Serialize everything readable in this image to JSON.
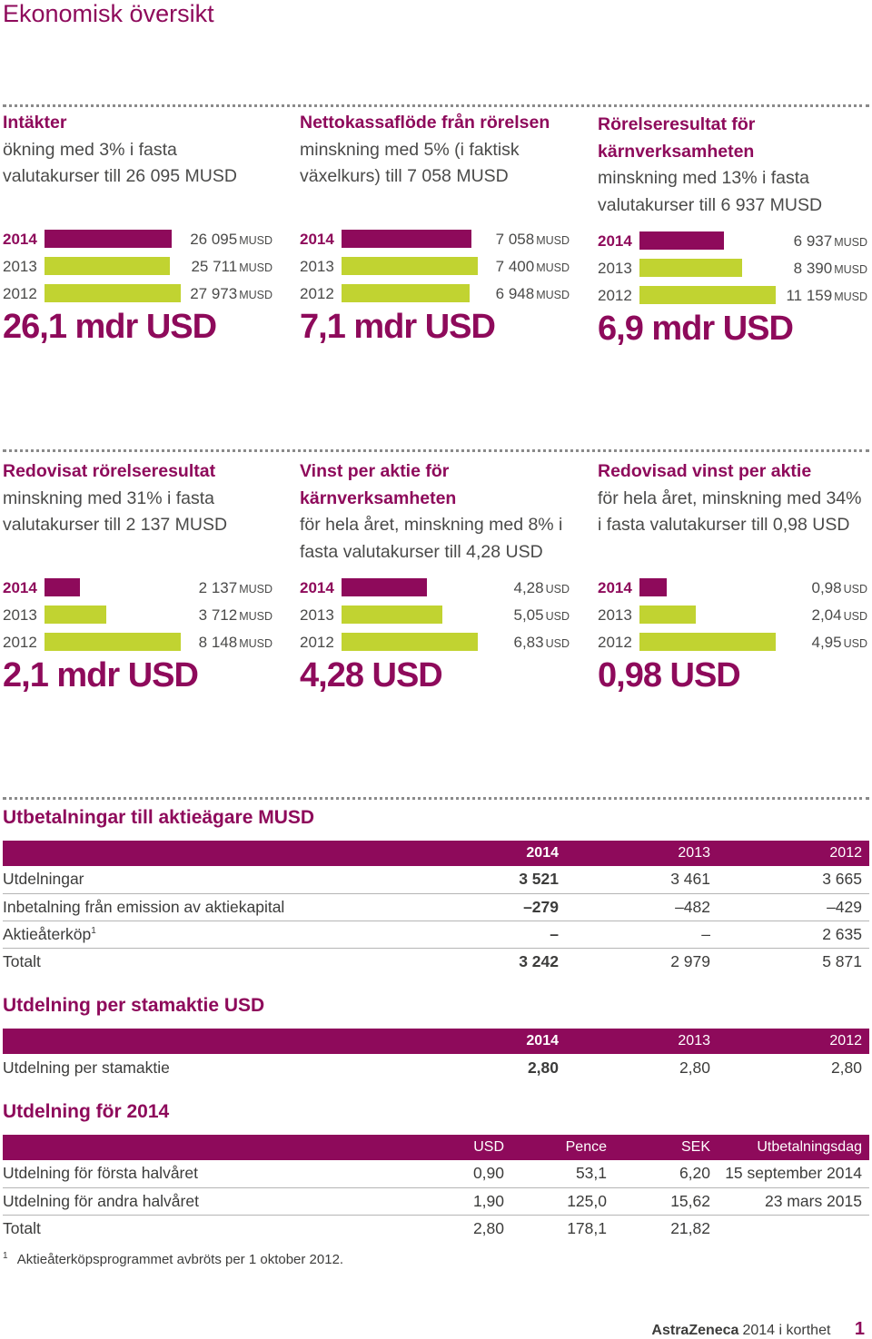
{
  "page": {
    "title": "Ekonomisk översikt"
  },
  "colors": {
    "accent": "#8e0a5b",
    "current_bar": "#8e0a5b",
    "prior_bar": "#c1d331"
  },
  "kpis": [
    {
      "title": "Intäkter",
      "desc": "ökning med 3% i fasta valutakurser till 26 095 MUSD",
      "big": "26,1 mdr USD",
      "rows": [
        {
          "year": "2014",
          "value": 26095,
          "num": "26 095",
          "unit": "MUSD"
        },
        {
          "year": "2013",
          "value": 25711,
          "num": "25 711",
          "unit": "MUSD"
        },
        {
          "year": "2012",
          "value": 27973,
          "num": "27 973",
          "unit": "MUSD"
        }
      ]
    },
    {
      "title": "Nettokassaflöde från rörelsen",
      "desc": "minskning med 5% (i faktisk växelkurs) till 7 058 MUSD",
      "big": "7,1 mdr USD",
      "rows": [
        {
          "year": "2014",
          "value": 7058,
          "num": "7 058",
          "unit": "MUSD"
        },
        {
          "year": "2013",
          "value": 7400,
          "num": "7 400",
          "unit": "MUSD"
        },
        {
          "year": "2012",
          "value": 6948,
          "num": "6 948",
          "unit": "MUSD"
        }
      ]
    },
    {
      "title": "Rörelseresultat för kärnverksamheten",
      "desc": "minskning med 13% i fasta valutakurser till 6 937 MUSD",
      "big": "6,9 mdr USD",
      "rows": [
        {
          "year": "2014",
          "value": 6937,
          "num": "6 937",
          "unit": "MUSD"
        },
        {
          "year": "2013",
          "value": 8390,
          "num": "8 390",
          "unit": "MUSD"
        },
        {
          "year": "2012",
          "value": 11159,
          "num": "11 159",
          "unit": "MUSD"
        }
      ]
    },
    {
      "title": "Redovisat rörelseresultat",
      "desc": "minskning med 31% i fasta valutakurser till 2 137 MUSD",
      "big": "2,1 mdr USD",
      "rows": [
        {
          "year": "2014",
          "value": 2137,
          "num": "2 137",
          "unit": "MUSD"
        },
        {
          "year": "2013",
          "value": 3712,
          "num": "3 712",
          "unit": "MUSD"
        },
        {
          "year": "2012",
          "value": 8148,
          "num": "8 148",
          "unit": "MUSD"
        }
      ]
    },
    {
      "title": "Vinst per aktie för kärnverksamheten",
      "desc": "för hela året, minskning med 8% i fasta valutakurser till 4,28 USD",
      "big": "4,28 USD",
      "rows": [
        {
          "year": "2014",
          "value": 4.28,
          "num": "4,28",
          "unit": "USD"
        },
        {
          "year": "2013",
          "value": 5.05,
          "num": "5,05",
          "unit": "USD"
        },
        {
          "year": "2012",
          "value": 6.83,
          "num": "6,83",
          "unit": "USD"
        }
      ]
    },
    {
      "title": "Redovisad vinst per aktie",
      "desc": "för hela året, minskning med 34% i fasta valutakurser till 0,98 USD",
      "big": "0,98 USD",
      "rows": [
        {
          "year": "2014",
          "value": 0.98,
          "num": "0,98",
          "unit": "USD"
        },
        {
          "year": "2013",
          "value": 2.04,
          "num": "2,04",
          "unit": "USD"
        },
        {
          "year": "2012",
          "value": 4.95,
          "num": "4,95",
          "unit": "USD"
        }
      ]
    }
  ],
  "payout": {
    "title": "Utbetalningar till aktieägare MUSD",
    "headers": [
      "",
      "2014",
      "2013",
      "2012"
    ],
    "rows": [
      {
        "label": "Utdelningar",
        "sup": "",
        "v": [
          "3 521",
          "3 461",
          "3 665"
        ]
      },
      {
        "label": "Inbetalning från emission av aktiekapital",
        "sup": "",
        "v": [
          "–279",
          "–482",
          "–429"
        ]
      },
      {
        "label": "Aktieåterköp",
        "sup": "1",
        "v": [
          "–",
          "–",
          "2 635"
        ]
      },
      {
        "label": "Totalt",
        "sup": "",
        "v": [
          "3 242",
          "2 979",
          "5 871"
        ]
      }
    ]
  },
  "dividend_per_share": {
    "title": "Utdelning per stamaktie USD",
    "headers": [
      "",
      "2014",
      "2013",
      "2012"
    ],
    "rows": [
      {
        "label": "Utdelning per stamaktie",
        "v": [
          "2,80",
          "2,80",
          "2,80"
        ]
      }
    ]
  },
  "dividend_2014": {
    "title": "Utdelning för 2014",
    "headers": [
      "",
      "USD",
      "Pence",
      "SEK",
      "Utbetalningsdag"
    ],
    "rows": [
      {
        "label": "Utdelning för första halvåret",
        "v": [
          "0,90",
          "53,1",
          "6,20",
          "15 september 2014"
        ]
      },
      {
        "label": "Utdelning för andra halvåret",
        "v": [
          "1,90",
          "125,0",
          "15,62",
          "23 mars 2015"
        ]
      },
      {
        "label": "Totalt",
        "v": [
          "2,80",
          "178,1",
          "21,82",
          ""
        ]
      }
    ]
  },
  "footnote": {
    "mark": "1",
    "text": "Aktieåterköpsprogrammet avbröts per 1 oktober 2012."
  },
  "footer": {
    "brand": "AstraZeneca",
    "year": "2014",
    "text": "i korthet",
    "page": "1"
  }
}
